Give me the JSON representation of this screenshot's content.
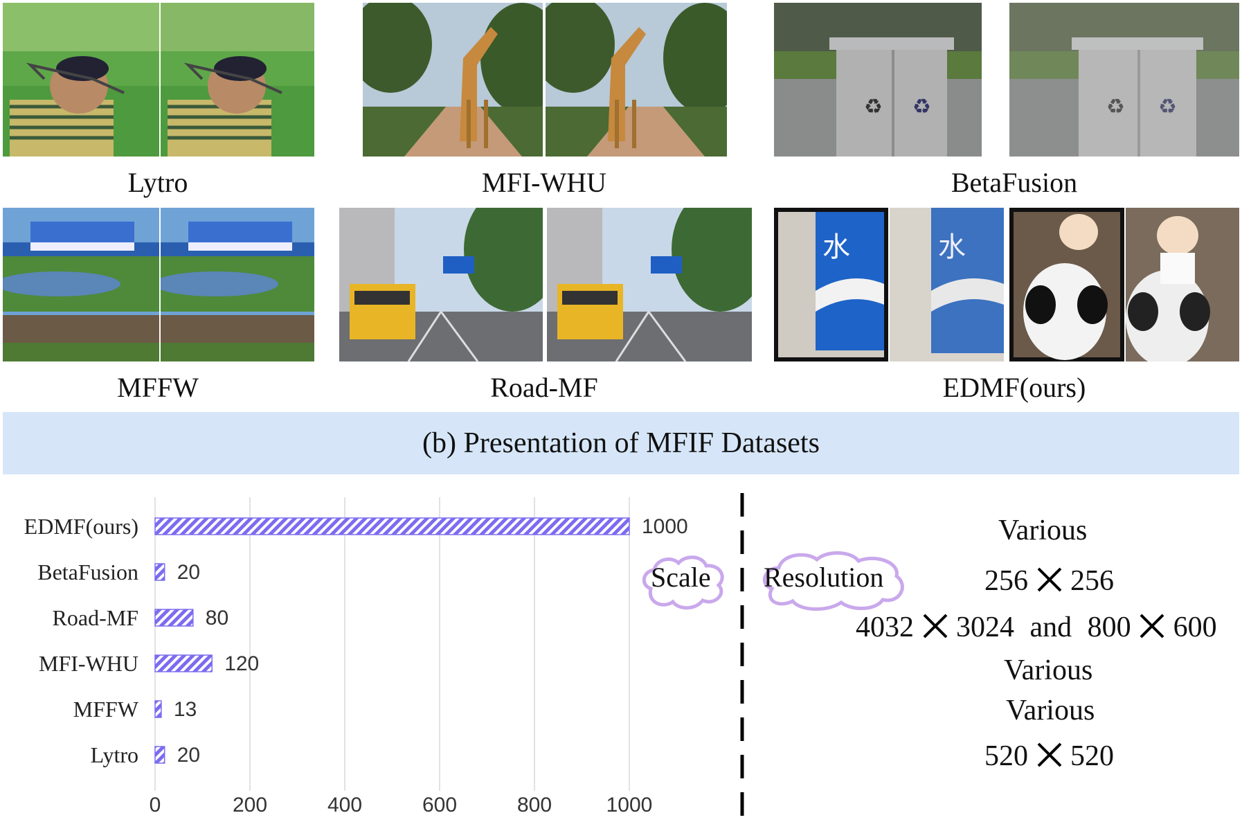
{
  "datasets": {
    "lytro": "Lytro",
    "mfiwhu": "MFI-WHU",
    "betafusion": "BetaFusion",
    "mffw": "MFFW",
    "roadmf": "Road-MF",
    "edmf": "EDMF(ours)"
  },
  "banner_title": "(b) Presentation of MFIF Datasets",
  "scale_label": "Scale",
  "resolution_label": "Resolution",
  "resolutions": {
    "edmf": "Various",
    "betafusion_a": "256",
    "betafusion_b": "256",
    "roadmf_a": "4032",
    "roadmf_b": "3024",
    "roadmf_and": "and",
    "roadmf_c": "800",
    "roadmf_d": "600",
    "mfiwhu": "Various",
    "mffw": "Various",
    "lytro_a": "520",
    "lytro_b": "520"
  },
  "colors": {
    "bar_fill": "#7b6cf0",
    "banner": "#d6e6f8",
    "cloud": "#c9a8ec"
  },
  "chart_data": {
    "type": "bar",
    "orientation": "horizontal",
    "categories": [
      "EDMF(ours)",
      "BetaFusion",
      "Road-MF",
      "MFI-WHU",
      "MFFW",
      "Lytro"
    ],
    "values": [
      1000,
      20,
      80,
      120,
      13,
      20
    ],
    "xlim": [
      0,
      1000
    ],
    "xticks": [
      0,
      200,
      400,
      600,
      800,
      1000
    ],
    "grid": true,
    "bar_pattern": "diagonal-hatch"
  }
}
